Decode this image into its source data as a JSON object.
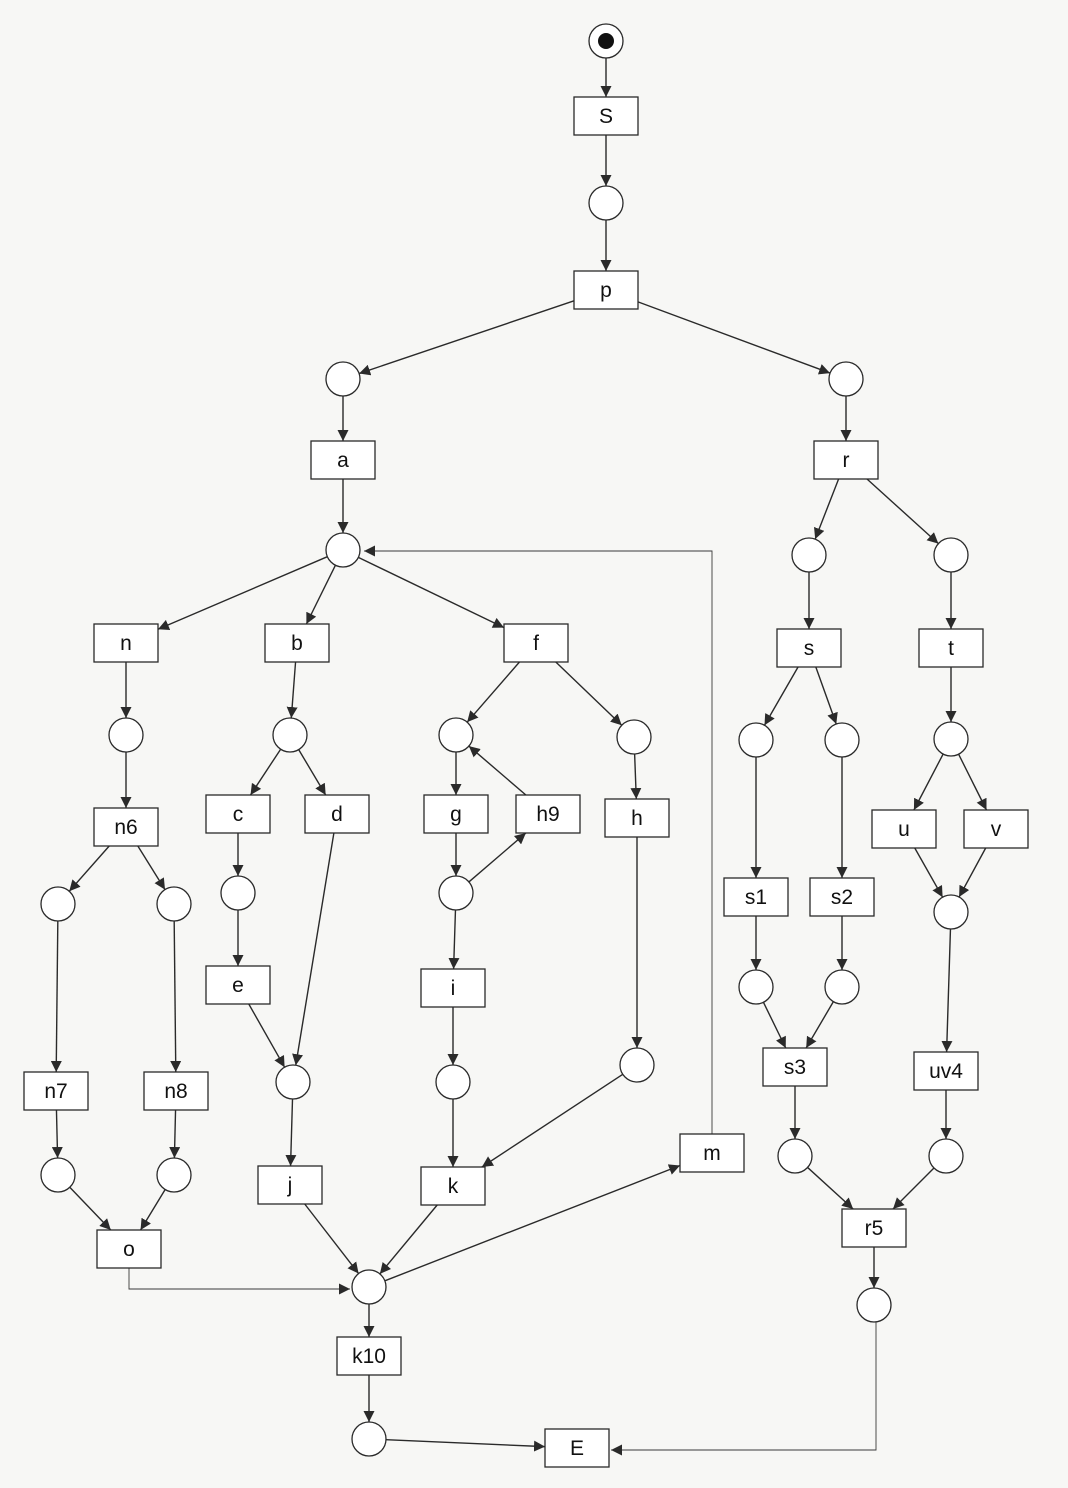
{
  "transitions": [
    {
      "id": "S",
      "label": "S"
    },
    {
      "id": "p",
      "label": "p"
    },
    {
      "id": "a",
      "label": "a"
    },
    {
      "id": "r",
      "label": "r"
    },
    {
      "id": "n",
      "label": "n"
    },
    {
      "id": "b",
      "label": "b"
    },
    {
      "id": "f",
      "label": "f"
    },
    {
      "id": "s",
      "label": "s"
    },
    {
      "id": "t",
      "label": "t"
    },
    {
      "id": "n6",
      "label": "n6"
    },
    {
      "id": "c",
      "label": "c"
    },
    {
      "id": "d",
      "label": "d"
    },
    {
      "id": "g",
      "label": "g"
    },
    {
      "id": "h9",
      "label": "h9"
    },
    {
      "id": "h",
      "label": "h"
    },
    {
      "id": "u",
      "label": "u"
    },
    {
      "id": "v",
      "label": "v"
    },
    {
      "id": "s1",
      "label": "s1"
    },
    {
      "id": "s2",
      "label": "s2"
    },
    {
      "id": "e",
      "label": "e"
    },
    {
      "id": "i",
      "label": "i"
    },
    {
      "id": "n7",
      "label": "n7"
    },
    {
      "id": "n8",
      "label": "n8"
    },
    {
      "id": "s3",
      "label": "s3"
    },
    {
      "id": "uv4",
      "label": "uv4"
    },
    {
      "id": "m",
      "label": "m"
    },
    {
      "id": "j",
      "label": "j"
    },
    {
      "id": "k",
      "label": "k"
    },
    {
      "id": "o",
      "label": "o"
    },
    {
      "id": "r5",
      "label": "r5"
    },
    {
      "id": "k10",
      "label": "k10"
    },
    {
      "id": "E",
      "label": "E"
    }
  ],
  "places": [
    {
      "id": "p_start",
      "marked": true
    },
    {
      "id": "p1"
    },
    {
      "id": "p2"
    },
    {
      "id": "p3"
    },
    {
      "id": "p4"
    },
    {
      "id": "p5"
    },
    {
      "id": "p6"
    },
    {
      "id": "p7"
    },
    {
      "id": "p8"
    },
    {
      "id": "p9"
    },
    {
      "id": "p10"
    },
    {
      "id": "p11"
    },
    {
      "id": "p12"
    },
    {
      "id": "p13"
    },
    {
      "id": "p14"
    },
    {
      "id": "p15"
    },
    {
      "id": "p16"
    },
    {
      "id": "p17"
    },
    {
      "id": "p18"
    },
    {
      "id": "p19"
    },
    {
      "id": "p20"
    },
    {
      "id": "p21"
    },
    {
      "id": "p22"
    },
    {
      "id": "p23"
    },
    {
      "id": "p24"
    },
    {
      "id": "p25"
    },
    {
      "id": "p26"
    },
    {
      "id": "p27"
    },
    {
      "id": "p28"
    },
    {
      "id": "p29"
    },
    {
      "id": "p30"
    },
    {
      "id": "p31"
    }
  ],
  "arcs": [
    [
      "p_start",
      "S"
    ],
    [
      "S",
      "p1"
    ],
    [
      "p1",
      "p"
    ],
    [
      "p",
      "p2"
    ],
    [
      "p",
      "p3"
    ],
    [
      "p2",
      "a"
    ],
    [
      "a",
      "p4"
    ],
    [
      "p3",
      "r"
    ],
    [
      "r",
      "p5"
    ],
    [
      "r",
      "p6"
    ],
    [
      "p4",
      "n"
    ],
    [
      "p4",
      "b"
    ],
    [
      "p4",
      "f"
    ],
    [
      "p5",
      "s"
    ],
    [
      "p6",
      "t"
    ],
    [
      "n",
      "p7"
    ],
    [
      "b",
      "p8"
    ],
    [
      "f",
      "p9"
    ],
    [
      "f",
      "p10"
    ],
    [
      "s",
      "p11"
    ],
    [
      "s",
      "p12"
    ],
    [
      "t",
      "p13"
    ],
    [
      "p7",
      "n6"
    ],
    [
      "p8",
      "c"
    ],
    [
      "p8",
      "d"
    ],
    [
      "p9",
      "g"
    ],
    [
      "h9",
      "p9"
    ],
    [
      "p10",
      "h"
    ],
    [
      "p11",
      "s1"
    ],
    [
      "p12",
      "s2"
    ],
    [
      "p13",
      "u"
    ],
    [
      "p13",
      "v"
    ],
    [
      "n6",
      "p14"
    ],
    [
      "n6",
      "p15"
    ],
    [
      "c",
      "p16"
    ],
    [
      "g",
      "p17"
    ],
    [
      "p17",
      "h9"
    ],
    [
      "u",
      "p18"
    ],
    [
      "v",
      "p18"
    ],
    [
      "p16",
      "e"
    ],
    [
      "p17",
      "i"
    ],
    [
      "s1",
      "p19"
    ],
    [
      "s2",
      "p20"
    ],
    [
      "p14",
      "n7"
    ],
    [
      "p15",
      "n8"
    ],
    [
      "e",
      "p21"
    ],
    [
      "d",
      "p21"
    ],
    [
      "i",
      "p22"
    ],
    [
      "h",
      "p23"
    ],
    [
      "p19",
      "s3"
    ],
    [
      "p20",
      "s3"
    ],
    [
      "p18",
      "uv4"
    ],
    [
      "s3",
      "p24"
    ],
    [
      "uv4",
      "p25"
    ],
    [
      "p21",
      "j"
    ],
    [
      "p22",
      "k"
    ],
    [
      "p23",
      "k"
    ],
    [
      "n7",
      "p26"
    ],
    [
      "n8",
      "p27"
    ],
    [
      "p26",
      "o"
    ],
    [
      "p27",
      "o"
    ],
    [
      "p24",
      "r5"
    ],
    [
      "p25",
      "r5"
    ],
    [
      "j",
      "p28"
    ],
    [
      "k",
      "p28"
    ],
    [
      "o",
      "p28"
    ],
    [
      "p28",
      "m"
    ],
    [
      "m",
      "p4"
    ],
    [
      "r5",
      "p29"
    ],
    [
      "p28",
      "k10"
    ],
    [
      "k10",
      "p30"
    ],
    [
      "p30",
      "E"
    ],
    [
      "p29",
      "E"
    ]
  ],
  "colors": {
    "stroke": "#2a2a2a",
    "background": "#f7f7f5"
  }
}
